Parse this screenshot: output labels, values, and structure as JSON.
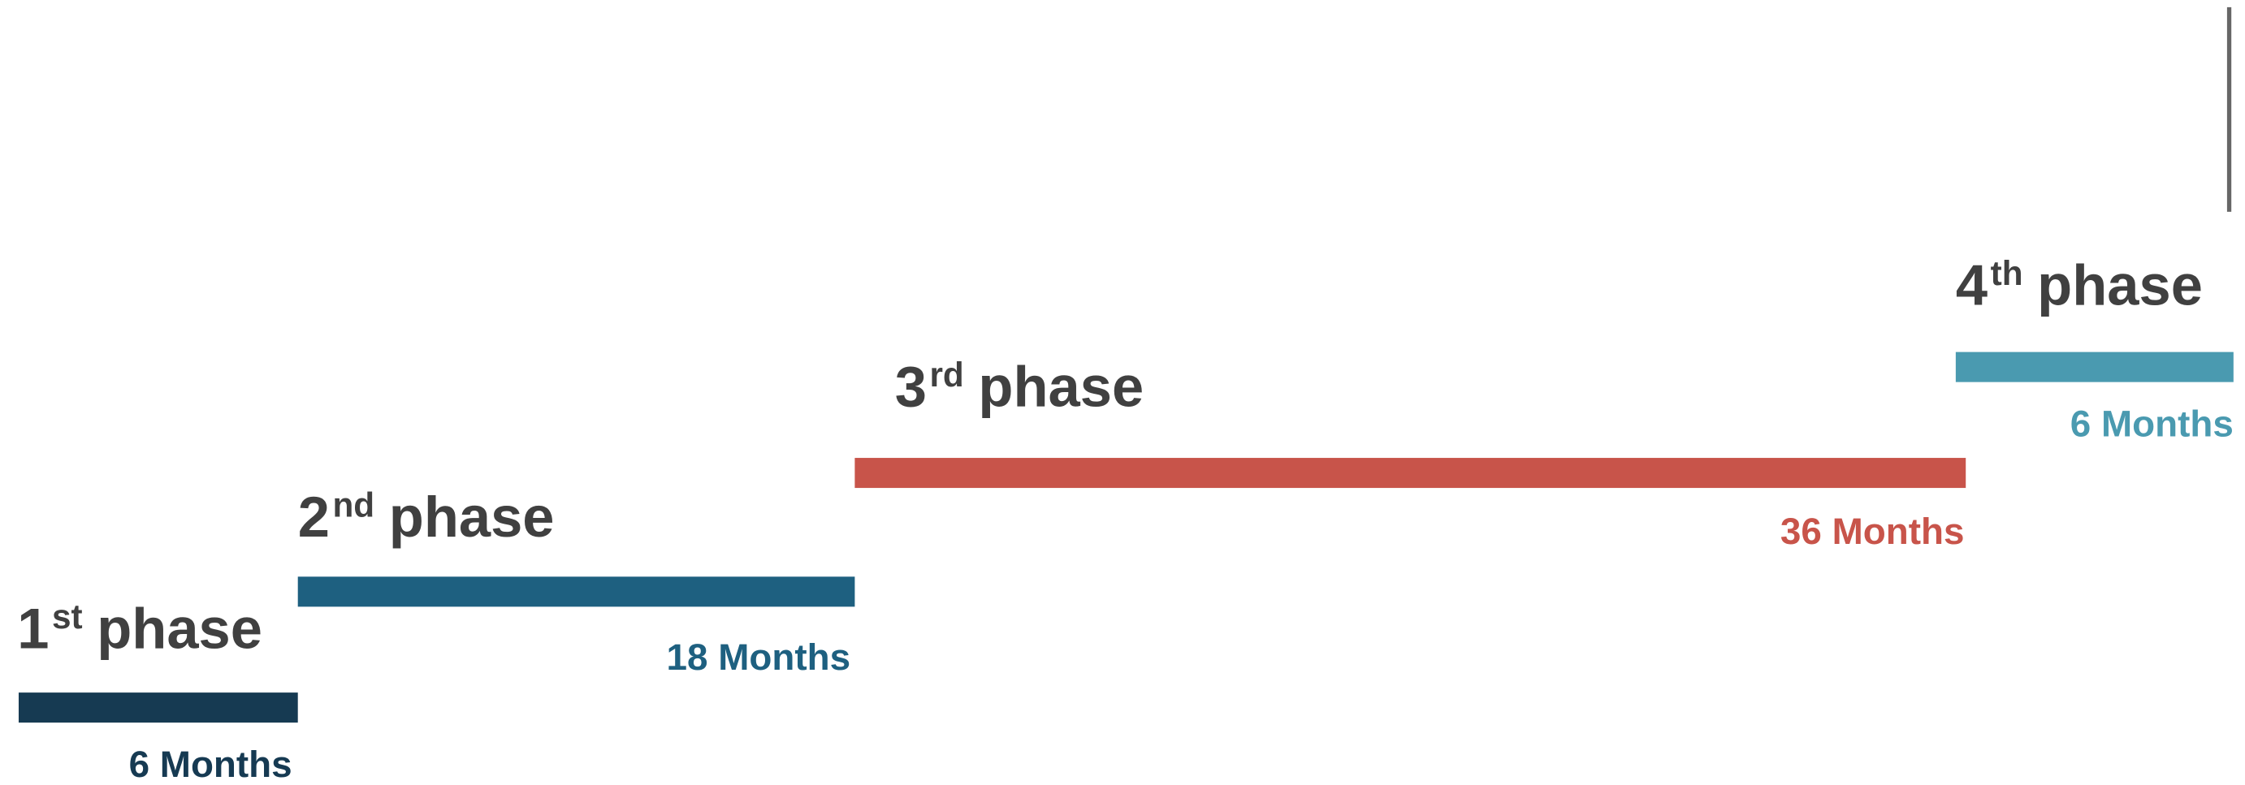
{
  "phases": [
    {
      "number": "1",
      "suffix": "st",
      "word": "phase",
      "duration": "6 Months"
    },
    {
      "number": "2",
      "suffix": "nd",
      "word": "phase",
      "duration": "18 Months"
    },
    {
      "number": "3",
      "suffix": "rd",
      "word": "phase",
      "duration": "36 Months"
    },
    {
      "number": "4",
      "suffix": "th",
      "word": "phase",
      "duration": "6 Months"
    }
  ]
}
